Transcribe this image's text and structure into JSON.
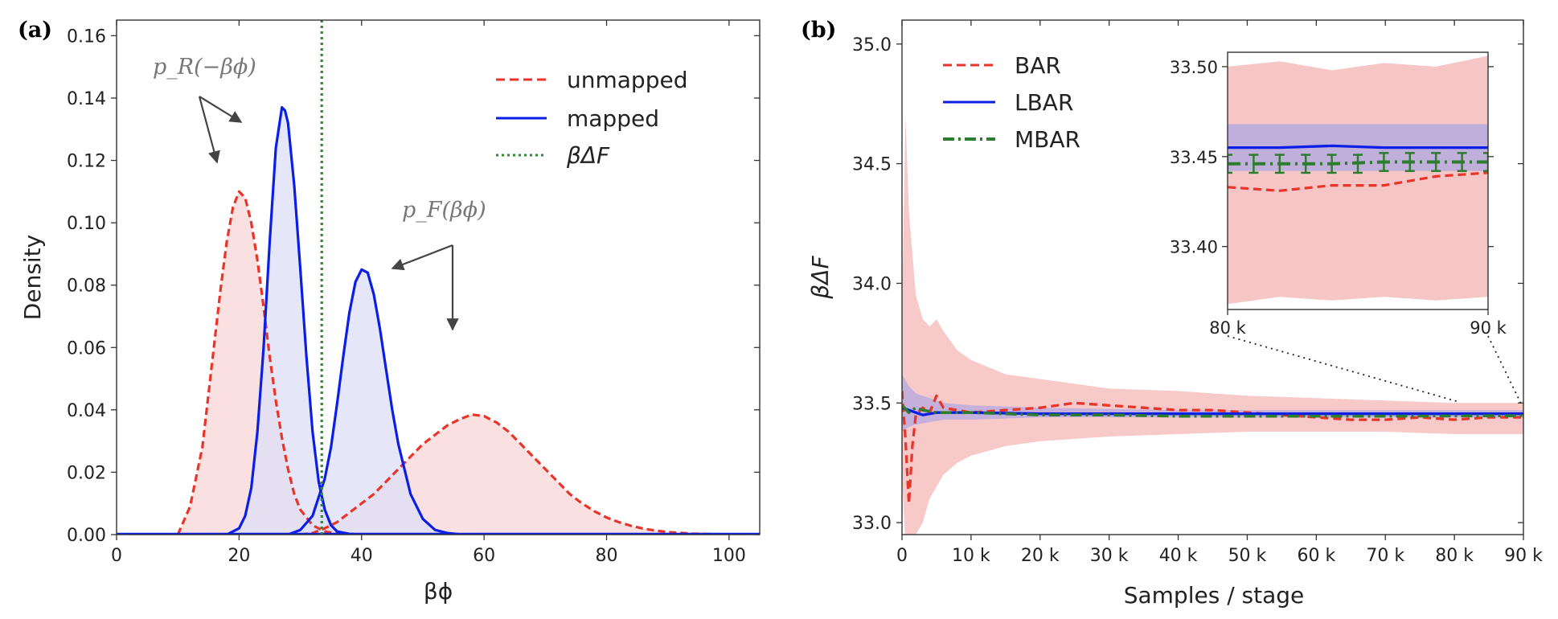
{
  "figure": {
    "panel_a_tag": "(a)",
    "panel_b_tag": "(b)"
  },
  "chart_data": [
    {
      "type": "line",
      "panel": "(a)",
      "xlabel": "βϕ",
      "ylabel": "Density",
      "xlim": [
        0,
        105
      ],
      "ylim": [
        0,
        0.165
      ],
      "x_ticks": [
        "0",
        "20",
        "40",
        "60",
        "80",
        "100"
      ],
      "y_ticks": [
        "0.00",
        "0.02",
        "0.04",
        "0.06",
        "0.08",
        "0.10",
        "0.12",
        "0.14",
        "0.16"
      ],
      "legend_position": "top-right",
      "legend": [
        "unmapped",
        "mapped",
        "βΔF"
      ],
      "vline": {
        "name": "βΔF",
        "x": 33.5,
        "color": "#2e8b2e",
        "style": "dotted"
      },
      "annotations": [
        "p_R(−βϕ)",
        "p_F(βϕ)"
      ],
      "series": [
        {
          "name": "unmapped",
          "color": "#e8352a",
          "style": "dashed",
          "fill": "#f8d3d3",
          "x": [
            10,
            12,
            14,
            15,
            16,
            17,
            18,
            19,
            20,
            21,
            22,
            23,
            24,
            25,
            26,
            27,
            28,
            29,
            30,
            32,
            34,
            36,
            38
          ],
          "y": [
            0.0,
            0.009,
            0.028,
            0.045,
            0.062,
            0.079,
            0.094,
            0.105,
            0.11,
            0.108,
            0.1,
            0.088,
            0.073,
            0.057,
            0.043,
            0.031,
            0.021,
            0.013,
            0.008,
            0.003,
            0.001,
            0.0003,
            0.0
          ]
        },
        {
          "name": "unmapped",
          "color": "#e8352a",
          "style": "dashed",
          "fill": "#f8d3d3",
          "x": [
            30,
            32,
            34,
            36,
            38,
            40,
            42,
            44,
            46,
            48,
            50,
            52,
            54,
            56,
            58,
            60,
            62,
            64,
            66,
            68,
            70,
            72,
            74,
            76,
            78,
            80,
            82,
            84,
            86,
            88,
            90,
            94,
            98,
            102
          ],
          "y": [
            0.0,
            0.0005,
            0.002,
            0.004,
            0.007,
            0.01,
            0.013,
            0.017,
            0.021,
            0.025,
            0.029,
            0.032,
            0.035,
            0.037,
            0.0385,
            0.038,
            0.036,
            0.033,
            0.029,
            0.025,
            0.021,
            0.017,
            0.013,
            0.01,
            0.0075,
            0.0055,
            0.004,
            0.0028,
            0.0019,
            0.0013,
            0.0008,
            0.0003,
            0.0001,
            0.0
          ]
        },
        {
          "name": "mapped",
          "color": "#0b1ee6",
          "style": "solid",
          "fill": "#dcdff7",
          "x": [
            18,
            20,
            21,
            22,
            23,
            24,
            25,
            26,
            27,
            27.5,
            28,
            29,
            30,
            31,
            32,
            33,
            34,
            35,
            36,
            38,
            40
          ],
          "y": [
            0.0,
            0.002,
            0.006,
            0.015,
            0.033,
            0.06,
            0.094,
            0.124,
            0.137,
            0.136,
            0.132,
            0.112,
            0.085,
            0.057,
            0.033,
            0.017,
            0.008,
            0.003,
            0.001,
            0.0002,
            0.0
          ]
        },
        {
          "name": "mapped",
          "color": "#0b1ee6",
          "style": "solid",
          "fill": "#dcdff7",
          "x": [
            28,
            30,
            32,
            34,
            35,
            36,
            37,
            38,
            39,
            40,
            41,
            42,
            43,
            44,
            45,
            46,
            48,
            50,
            52,
            54,
            56,
            58
          ],
          "y": [
            0.0,
            0.0015,
            0.006,
            0.018,
            0.028,
            0.042,
            0.057,
            0.071,
            0.081,
            0.085,
            0.084,
            0.077,
            0.066,
            0.053,
            0.04,
            0.029,
            0.013,
            0.005,
            0.0015,
            0.0005,
            0.0001,
            0.0
          ]
        }
      ]
    },
    {
      "type": "line",
      "panel": "(b)",
      "xlabel": "Samples / stage",
      "ylabel": "βΔF",
      "xlim": [
        0,
        90000
      ],
      "ylim": [
        32.95,
        35.1
      ],
      "x_ticks": [
        "0",
        "10 k",
        "20 k",
        "30 k",
        "40 k",
        "50 k",
        "60 k",
        "70 k",
        "80 k",
        "90 k"
      ],
      "y_ticks": [
        "33.0",
        "33.5",
        "34.0",
        "34.5",
        "35.0"
      ],
      "legend_position": "top-left",
      "series": [
        {
          "name": "BAR",
          "color": "#e8352a",
          "style": "dashed",
          "x": [
            0,
            500,
            1000,
            1500,
            2000,
            3000,
            4000,
            5000,
            6000,
            8000,
            10000,
            15000,
            20000,
            25000,
            30000,
            35000,
            40000,
            45000,
            50000,
            55000,
            60000,
            65000,
            70000,
            75000,
            80000,
            85000,
            90000
          ],
          "y": [
            33.55,
            33.35,
            33.08,
            33.32,
            33.45,
            33.48,
            33.46,
            33.53,
            33.48,
            33.47,
            33.46,
            33.47,
            33.48,
            33.5,
            33.49,
            33.48,
            33.47,
            33.47,
            33.46,
            33.45,
            33.44,
            33.43,
            33.43,
            33.44,
            33.43,
            33.44,
            33.44
          ]
        },
        {
          "name": "LBAR",
          "color": "#0b1ee6",
          "style": "solid",
          "x": [
            0,
            1000,
            2000,
            3000,
            5000,
            10000,
            20000,
            30000,
            40000,
            50000,
            60000,
            70000,
            80000,
            90000
          ],
          "y": [
            33.48,
            33.47,
            33.46,
            33.45,
            33.46,
            33.46,
            33.455,
            33.455,
            33.455,
            33.455,
            33.455,
            33.455,
            33.455,
            33.455
          ]
        },
        {
          "name": "MBAR",
          "color": "#2e7d2e",
          "style": "dashdot",
          "x": [
            0,
            1000,
            2000,
            3000,
            5000,
            10000,
            20000,
            30000,
            40000,
            50000,
            60000,
            70000,
            80000,
            90000
          ],
          "y": [
            33.49,
            33.46,
            33.48,
            33.47,
            33.46,
            33.46,
            33.45,
            33.45,
            33.445,
            33.445,
            33.445,
            33.445,
            33.446,
            33.447
          ]
        }
      ],
      "bands": [
        {
          "series": "BAR",
          "color": "#f5bcbc",
          "x": [
            0,
            500,
            1000,
            2000,
            3000,
            4000,
            5000,
            6000,
            8000,
            10000,
            15000,
            20000,
            30000,
            40000,
            50000,
            60000,
            70000,
            80000,
            90000
          ],
          "lower": [
            33.2,
            32.9,
            32.9,
            32.95,
            33.0,
            33.1,
            33.15,
            33.2,
            33.25,
            33.28,
            33.32,
            33.34,
            33.36,
            33.37,
            33.38,
            33.38,
            33.38,
            33.37,
            33.37
          ],
          "upper": [
            33.9,
            34.7,
            34.3,
            33.95,
            33.85,
            33.82,
            33.85,
            33.8,
            33.72,
            33.68,
            33.62,
            33.6,
            33.56,
            33.55,
            33.53,
            33.52,
            33.51,
            33.5,
            33.5
          ]
        },
        {
          "series": "LBAR",
          "color": "#b3a7e0",
          "x": [
            0,
            1000,
            2000,
            4000,
            6000,
            10000,
            20000,
            40000,
            60000,
            90000
          ],
          "lower": [
            33.38,
            33.4,
            33.41,
            33.42,
            33.43,
            33.43,
            33.44,
            33.44,
            33.44,
            33.44
          ],
          "upper": [
            33.62,
            33.57,
            33.54,
            33.52,
            33.5,
            33.49,
            33.48,
            33.47,
            33.47,
            33.47
          ]
        }
      ],
      "inset": {
        "xlim": [
          80000,
          90000
        ],
        "ylim": [
          33.365,
          33.508
        ],
        "x_ticks": [
          "80 k",
          "90 k"
        ],
        "y_ticks": [
          "33.40",
          "33.45",
          "33.50"
        ],
        "bar_x": [
          80000,
          82000,
          84000,
          86000,
          88000,
          90000
        ],
        "bar_y": [
          33.454,
          33.455,
          33.455,
          33.455,
          33.454,
          33.455
        ],
        "bar_lower_band": [
          33.368,
          33.372,
          33.37,
          33.372,
          33.37,
          33.372
        ],
        "bar_upper_band": [
          33.5,
          33.503,
          33.498,
          33.502,
          33.5,
          33.506
        ],
        "lbar_y": [
          33.455,
          33.455,
          33.456,
          33.455,
          33.455,
          33.455
        ],
        "lbar_band": [
          33.442,
          33.468
        ],
        "bar_series_y": [
          33.433,
          33.431,
          33.434,
          33.434,
          33.439,
          33.441
        ],
        "mbar_y": [
          33.446,
          33.446,
          33.446,
          33.447,
          33.447,
          33.447
        ],
        "mbar_err": 0.005
      }
    }
  ]
}
